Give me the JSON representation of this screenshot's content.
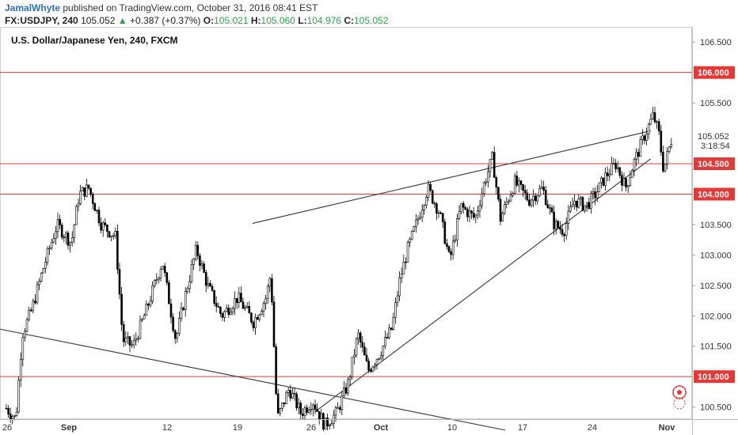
{
  "header": {
    "author": "JamalWhyte",
    "published": "published on TradingView.com, October 31, 2016 08:41 EST",
    "symbol": "FX:USDJPY, 240",
    "last": "105.052",
    "arrow": "▲",
    "change": "+0.387 (+0.37%)",
    "open_label": "O:",
    "open": "105.021",
    "high_label": "H:",
    "high": "105.060",
    "low_label": "L:",
    "low": "104.976",
    "close_label": "C:",
    "close": "105.052"
  },
  "chart_data": {
    "type": "candlestick",
    "title": "U.S. Dollar/Japanese Yen, 240, FXCM",
    "y_range": [
      100.3,
      106.75
    ],
    "y_ticks": [
      "106.500",
      "105.500",
      "103.500",
      "103.000",
      "102.500",
      "102.000",
      "101.500",
      "100.500"
    ],
    "x_ticks": [
      "26",
      "Sep",
      "12",
      "19",
      "26",
      "Oct",
      "10",
      "17",
      "24",
      "Nov"
    ],
    "current_price": "105.052",
    "countdown": "3:18:54",
    "horizontal_levels": [
      {
        "value": 106.0,
        "label": "106.000"
      },
      {
        "value": 104.5,
        "label": "104.500"
      },
      {
        "value": 104.0,
        "label": "104.000"
      },
      {
        "value": 101.0,
        "label": "101.000"
      }
    ],
    "trendlines": [
      {
        "name": "descending",
        "from": [
          0.0,
          101.78
        ],
        "to": [
          0.73,
          100.12
        ]
      },
      {
        "name": "channel-upper",
        "from": [
          0.365,
          103.52
        ],
        "to": [
          0.94,
          105.04
        ]
      },
      {
        "name": "channel-lower",
        "from": [
          0.455,
          100.42
        ],
        "to": [
          0.94,
          104.58
        ]
      }
    ],
    "colors": {
      "level": "#e53935",
      "trend": "#444444",
      "candle": "#000000",
      "up": "#2ea04a",
      "link": "#2e6fb8"
    }
  }
}
